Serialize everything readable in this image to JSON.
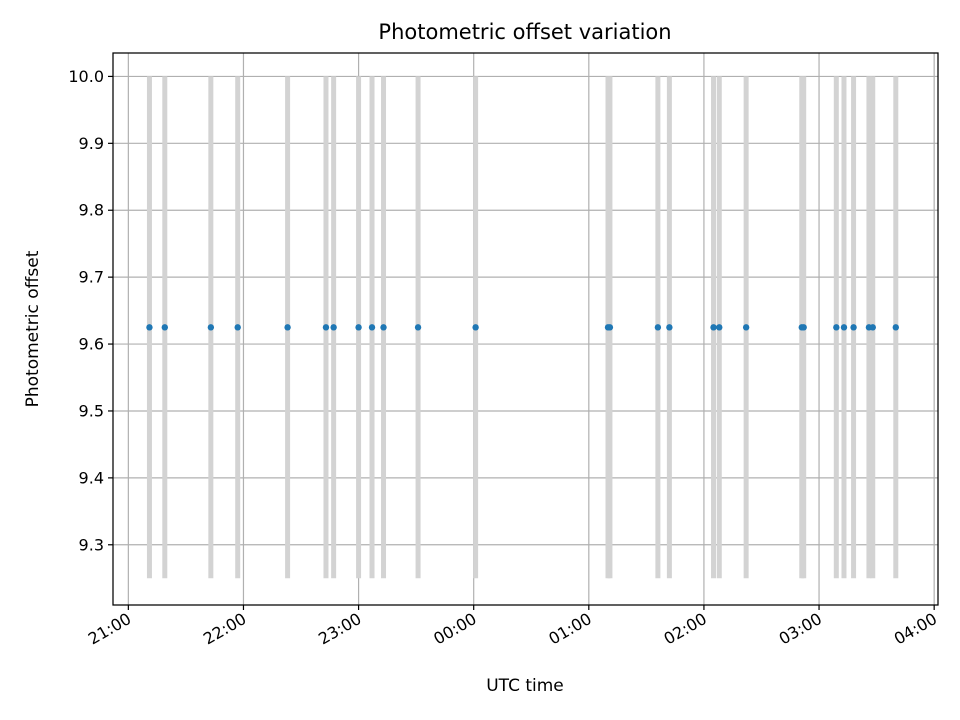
{
  "chart_data": {
    "type": "scatter",
    "title": "Photometric offset variation",
    "xlabel": "UTC time",
    "ylabel": "Photometric offset",
    "x_axis_type": "time",
    "xlim": [
      "20:52",
      "04:02"
    ],
    "ylim": [
      9.21,
      10.035
    ],
    "grid": true,
    "x_ticks": [
      "21:00",
      "22:00",
      "23:00",
      "00:00",
      "01:00",
      "02:00",
      "03:00",
      "04:00"
    ],
    "y_ticks": [
      "9.3",
      "9.4",
      "9.5",
      "9.6",
      "9.7",
      "9.8",
      "9.9",
      "10.0"
    ],
    "colors": {
      "points": "#1f77b4",
      "bands": "#d3d3d3",
      "grid": "#b0b0b0"
    },
    "bands": {
      "y_range": [
        9.25,
        10.0
      ],
      "times": [
        "21:11",
        "21:19",
        "21:43",
        "21:57",
        "22:23",
        "22:43",
        "22:47",
        "23:00",
        "23:07",
        "23:13",
        "23:31",
        "00:01",
        "01:10",
        "01:11",
        "01:36",
        "01:42",
        "02:05",
        "02:08",
        "02:22",
        "02:51",
        "02:52",
        "03:09",
        "03:13",
        "03:18",
        "03:26",
        "03:28",
        "03:40"
      ]
    },
    "series": [
      {
        "x": [
          "21:11",
          "21:19",
          "21:43",
          "21:57",
          "22:23",
          "22:43",
          "22:47",
          "23:00",
          "23:07",
          "23:13",
          "23:31",
          "00:01",
          "01:10",
          "01:11",
          "01:36",
          "01:42",
          "02:05",
          "02:08",
          "02:22",
          "02:51",
          "02:52",
          "03:09",
          "03:13",
          "03:18",
          "03:26",
          "03:28",
          "03:40"
        ],
        "y": [
          9.625,
          9.625,
          9.625,
          9.625,
          9.625,
          9.625,
          9.625,
          9.625,
          9.625,
          9.625,
          9.625,
          9.625,
          9.625,
          9.625,
          9.625,
          9.625,
          9.625,
          9.625,
          9.625,
          9.625,
          9.625,
          9.625,
          9.625,
          9.625,
          9.625,
          9.625,
          9.625
        ]
      }
    ]
  }
}
